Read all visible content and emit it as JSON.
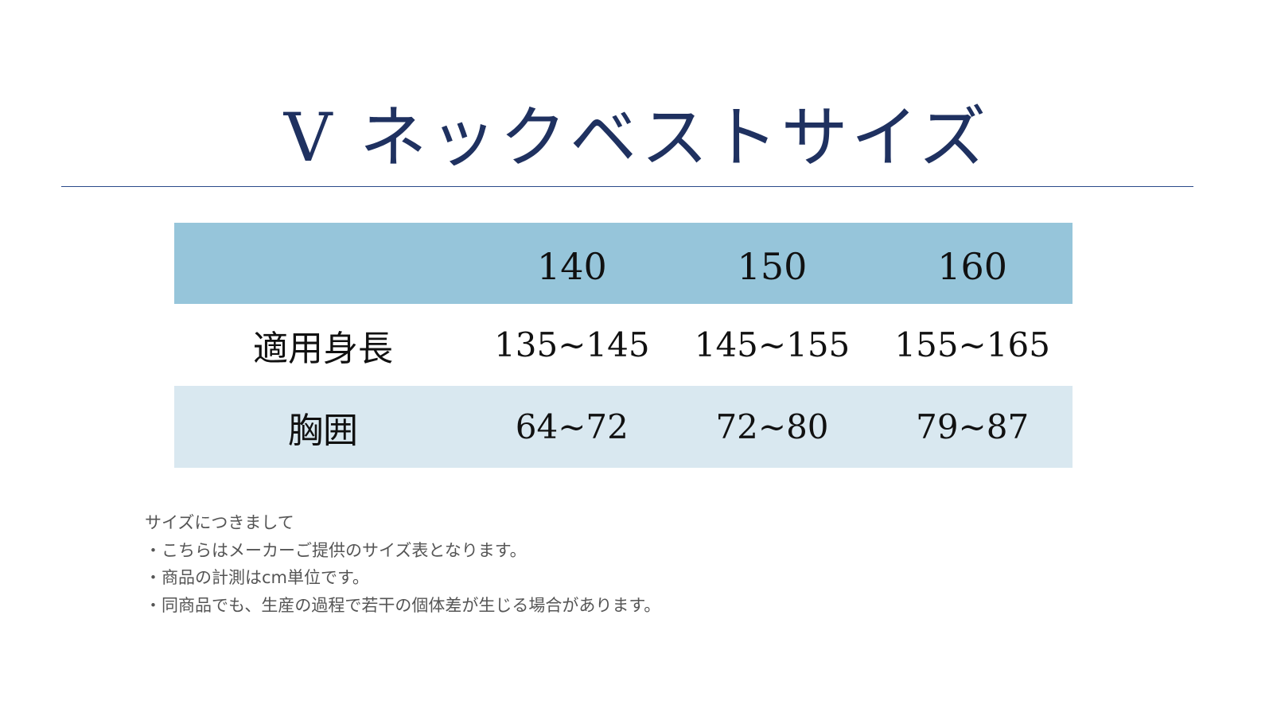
{
  "title": "V ネックベストサイズ",
  "table": {
    "header": [
      "",
      "140",
      "150",
      "160"
    ],
    "rows": [
      {
        "label": "適用身長",
        "values": [
          "135~145",
          "145~155",
          "155~165"
        ]
      },
      {
        "label": "胸囲",
        "values": [
          "64~72",
          "72~80",
          "79~87"
        ]
      }
    ]
  },
  "notes": {
    "heading": "サイズにつきまして",
    "items": [
      "・こちらはメーカーご提供のサイズ表となります。",
      "・商品の計測はcm単位です。",
      "・同商品でも、生産の過程で若干の個体差が生じる場合があります。"
    ]
  },
  "colors": {
    "title": "#1f3160",
    "header_bg": "#96c5da",
    "alt_row_bg": "#d9e8f0",
    "rule": "#2a4a8a"
  }
}
